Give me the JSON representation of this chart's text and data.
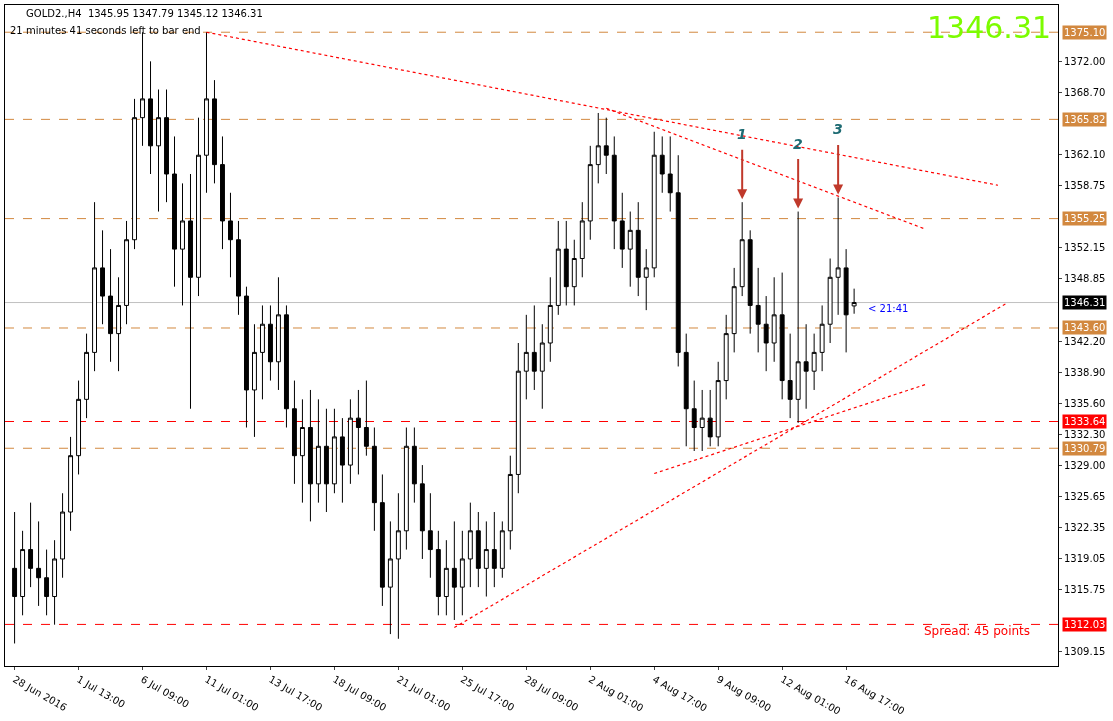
{
  "chart_data": {
    "type": "candlestick",
    "title": "GOLD2.,H4  1345.95 1347.79 1345.12 1346.31",
    "subtitle": "21 minutes 41 seconds left to bar end",
    "color": "#000000",
    "categories": [
      "28 Jun 2016",
      null,
      null,
      null,
      null,
      null,
      null,
      null,
      "1 Jul 13:00",
      null,
      null,
      null,
      null,
      null,
      null,
      null,
      "6 Jul 09:00",
      null,
      null,
      null,
      null,
      null,
      null,
      null,
      "11 Jul 01:00",
      null,
      null,
      null,
      null,
      null,
      null,
      null,
      "13 Jul 17:00",
      null,
      null,
      null,
      null,
      null,
      null,
      null,
      "18 Jul 09:00",
      null,
      null,
      null,
      null,
      null,
      null,
      null,
      "21 Jul 01:00",
      null,
      null,
      null,
      null,
      null,
      null,
      null,
      "25 Jul 17:00",
      null,
      null,
      null,
      null,
      null,
      null,
      null,
      "28 Jul 09:00",
      null,
      null,
      null,
      null,
      null,
      null,
      null,
      "2 Aug 01:00",
      null,
      null,
      null,
      null,
      null,
      null,
      null,
      "4 Aug 17:00",
      null,
      null,
      null,
      null,
      null,
      null,
      null,
      "9 Aug 09:00",
      null,
      null,
      null,
      null,
      null,
      null,
      null,
      "12 Aug 01:00",
      null,
      null,
      null,
      null,
      null,
      null,
      null,
      "16 Aug 17:00",
      null,
      null,
      null,
      null,
      null,
      null,
      null,
      null,
      null,
      null,
      null,
      null,
      null,
      null,
      null,
      null,
      null,
      null,
      null,
      null,
      null,
      null,
      null,
      null,
      null,
      null
    ],
    "ohlc": [
      [
        1318,
        1324,
        1310,
        1315
      ],
      [
        1315,
        1322,
        1313,
        1320
      ],
      [
        1320,
        1325,
        1316,
        1318
      ],
      [
        1318,
        1323,
        1314,
        1317
      ],
      [
        1317,
        1320,
        1313,
        1315
      ],
      [
        1315,
        1321,
        1312,
        1319
      ],
      [
        1319,
        1326,
        1317,
        1324
      ],
      [
        1324,
        1332,
        1322,
        1330
      ],
      [
        1330,
        1338,
        1328,
        1336
      ],
      [
        1336,
        1343,
        1334,
        1341
      ],
      [
        1341,
        1357,
        1339,
        1350
      ],
      [
        1350,
        1354,
        1344,
        1347
      ],
      [
        1347,
        1352,
        1340,
        1343
      ],
      [
        1343,
        1349,
        1339,
        1346
      ],
      [
        1346,
        1355,
        1344,
        1353
      ],
      [
        1353,
        1368,
        1352,
        1366
      ],
      [
        1366,
        1375.1,
        1363,
        1368
      ],
      [
        1368,
        1372,
        1360,
        1363
      ],
      [
        1363,
        1369,
        1356,
        1366
      ],
      [
        1366,
        1369,
        1357,
        1360
      ],
      [
        1360,
        1364,
        1348,
        1352
      ],
      [
        1352,
        1359,
        1346,
        1355
      ],
      [
        1355,
        1360,
        1335,
        1349
      ],
      [
        1349,
        1366,
        1347,
        1362
      ],
      [
        1362,
        1375.1,
        1358,
        1368
      ],
      [
        1368,
        1370,
        1359,
        1361
      ],
      [
        1361,
        1364,
        1352,
        1355
      ],
      [
        1355,
        1358,
        1349,
        1353
      ],
      [
        1353,
        1355,
        1345,
        1347
      ],
      [
        1347,
        1348,
        1333,
        1337
      ],
      [
        1337,
        1344,
        1332,
        1341
      ],
      [
        1341,
        1346,
        1336,
        1344
      ],
      [
        1344,
        1346,
        1338,
        1340
      ],
      [
        1340,
        1349,
        1337,
        1345
      ],
      [
        1345,
        1346,
        1333,
        1335
      ],
      [
        1335,
        1338,
        1327,
        1330
      ],
      [
        1330,
        1336,
        1325,
        1333
      ],
      [
        1333,
        1337,
        1323,
        1327
      ],
      [
        1327,
        1336,
        1325,
        1331
      ],
      [
        1331,
        1335,
        1324,
        1327
      ],
      [
        1327,
        1335,
        1326,
        1332
      ],
      [
        1332,
        1334,
        1325,
        1329
      ],
      [
        1329,
        1336,
        1327,
        1334
      ],
      [
        1334,
        1337,
        1328,
        1333
      ],
      [
        1333,
        1338,
        1330,
        1331
      ],
      [
        1331,
        1333,
        1322,
        1325
      ],
      [
        1325,
        1328,
        1314,
        1316
      ],
      [
        1316,
        1323,
        1311,
        1319
      ],
      [
        1319,
        1326,
        1310.5,
        1322
      ],
      [
        1322,
        1333,
        1320,
        1331
      ],
      [
        1331,
        1333,
        1325,
        1327
      ],
      [
        1327,
        1329,
        1319,
        1322
      ],
      [
        1322,
        1326,
        1317,
        1320
      ],
      [
        1320,
        1322,
        1313,
        1315
      ],
      [
        1315,
        1321,
        1313,
        1318
      ],
      [
        1318,
        1323,
        1312.5,
        1316
      ],
      [
        1316,
        1322,
        1313,
        1319
      ],
      [
        1319,
        1325,
        1316,
        1322
      ],
      [
        1322,
        1324,
        1316,
        1318
      ],
      [
        1318,
        1323,
        1315,
        1320
      ],
      [
        1320,
        1324,
        1316,
        1318
      ],
      [
        1318,
        1323,
        1317,
        1322
      ],
      [
        1322,
        1330,
        1320,
        1328
      ],
      [
        1328,
        1342,
        1326,
        1339
      ],
      [
        1339,
        1345,
        1336,
        1341
      ],
      [
        1341,
        1346,
        1337,
        1339
      ],
      [
        1339,
        1344,
        1335,
        1342
      ],
      [
        1342,
        1349,
        1340,
        1346
      ],
      [
        1346,
        1355,
        1345,
        1352
      ],
      [
        1352,
        1355,
        1346,
        1348
      ],
      [
        1348,
        1353,
        1346,
        1351
      ],
      [
        1351,
        1357,
        1349,
        1355
      ],
      [
        1355,
        1363,
        1353,
        1361
      ],
      [
        1361,
        1366.5,
        1359,
        1363
      ],
      [
        1363,
        1366,
        1360,
        1362
      ],
      [
        1362,
        1364,
        1352,
        1355
      ],
      [
        1355,
        1358,
        1350,
        1352
      ],
      [
        1352,
        1356,
        1348,
        1354
      ],
      [
        1354,
        1357,
        1347,
        1349
      ],
      [
        1349,
        1352,
        1345.5,
        1350
      ],
      [
        1350,
        1364.5,
        1349,
        1362
      ],
      [
        1362,
        1364,
        1358,
        1360
      ],
      [
        1360,
        1364,
        1356,
        1358
      ],
      [
        1358,
        1362,
        1339.5,
        1341
      ],
      [
        1341,
        1343,
        1331,
        1335
      ],
      [
        1335,
        1338,
        1330.5,
        1333
      ],
      [
        1333,
        1337,
        1330.5,
        1334
      ],
      [
        1334,
        1337,
        1331,
        1332
      ],
      [
        1332,
        1340,
        1331,
        1338
      ],
      [
        1338,
        1345,
        1336,
        1343
      ],
      [
        1343,
        1350,
        1341,
        1348
      ],
      [
        1348,
        1357,
        1347,
        1353
      ],
      [
        1353,
        1354,
        1343,
        1346
      ],
      [
        1346,
        1350,
        1341,
        1344
      ],
      [
        1344,
        1347,
        1339,
        1342
      ],
      [
        1342,
        1349,
        1340,
        1345
      ],
      [
        1345,
        1349.5,
        1336,
        1338
      ],
      [
        1338,
        1343,
        1334,
        1336
      ],
      [
        1336,
        1356,
        1333.5,
        1340
      ],
      [
        1340,
        1344,
        1335,
        1339
      ],
      [
        1339,
        1343,
        1337,
        1341
      ],
      [
        1341,
        1346,
        1339,
        1344
      ],
      [
        1344,
        1351,
        1342,
        1349
      ],
      [
        1349,
        1357.5,
        1345,
        1350
      ],
      [
        1350,
        1352,
        1341,
        1345
      ],
      [
        1345.95,
        1347.79,
        1345.12,
        1346.31
      ],
      null,
      null,
      null,
      null,
      null,
      null,
      null,
      null,
      null,
      null,
      null,
      null,
      null,
      null,
      null,
      null,
      null,
      null,
      null,
      null,
      null,
      null,
      null,
      null,
      null
    ],
    "series": [
      {
        "type": "line",
        "color": "#ff0000",
        "values": [
          null,
          null,
          null,
          null,
          null,
          null,
          null,
          null,
          null,
          null,
          null,
          null,
          null,
          null,
          null,
          null,
          null,
          null,
          null,
          null,
          null,
          null,
          null,
          null,
          1375.1,
          null,
          null,
          null,
          null,
          null,
          null,
          null,
          null,
          null,
          null,
          null,
          null,
          null,
          null,
          null,
          null,
          null,
          null,
          null,
          null,
          null,
          null,
          null,
          null,
          null,
          null,
          null,
          null,
          null,
          null,
          null,
          null,
          null,
          null,
          null,
          null,
          null,
          null,
          null,
          null,
          null,
          null,
          null,
          null,
          null,
          null,
          null,
          null,
          null,
          null,
          null,
          null,
          null,
          null,
          null,
          null,
          null,
          null,
          null,
          null,
          null,
          null,
          null,
          null,
          null,
          null,
          null,
          null,
          null,
          null,
          null,
          null,
          null,
          null,
          null,
          null,
          null,
          null,
          null,
          null,
          null,
          null,
          null,
          null,
          null,
          null,
          null,
          null,
          null,
          null,
          null,
          null,
          null,
          null,
          null,
          null,
          null,
          null,
          1358.8,
          null,
          null,
          null,
          null,
          null,
          null,
          null
        ]
      },
      {
        "type": "line",
        "color": "#ff0000",
        "values": [
          null,
          null,
          null,
          null,
          null,
          null,
          null,
          null,
          null,
          null,
          null,
          null,
          null,
          null,
          null,
          null,
          null,
          null,
          null,
          null,
          null,
          null,
          null,
          null,
          null,
          null,
          null,
          null,
          null,
          null,
          null,
          null,
          null,
          null,
          null,
          null,
          null,
          null,
          null,
          null,
          null,
          null,
          null,
          null,
          null,
          null,
          null,
          null,
          null,
          null,
          null,
          null,
          null,
          null,
          null,
          null,
          null,
          null,
          null,
          null,
          null,
          null,
          null,
          null,
          null,
          null,
          null,
          null,
          null,
          null,
          null,
          null,
          null,
          null,
          1367.0,
          null,
          null,
          null,
          null,
          null,
          null,
          null,
          null,
          null,
          null,
          null,
          null,
          null,
          null,
          null,
          null,
          null,
          null,
          null,
          null,
          null,
          null,
          null,
          null,
          null,
          null,
          null,
          null,
          null,
          null,
          null,
          null,
          null,
          null,
          null,
          null,
          null,
          null,
          null,
          1354.1,
          null,
          null,
          null,
          null,
          null,
          null,
          null,
          null,
          null,
          null,
          null,
          null,
          null,
          null,
          null,
          null
        ]
      },
      {
        "type": "line",
        "color": "#ff0000",
        "values": [
          null,
          null,
          null,
          null,
          null,
          null,
          null,
          null,
          null,
          null,
          null,
          null,
          null,
          null,
          null,
          null,
          null,
          null,
          null,
          null,
          null,
          null,
          null,
          null,
          null,
          null,
          null,
          null,
          null,
          null,
          null,
          null,
          null,
          null,
          null,
          null,
          null,
          null,
          null,
          null,
          null,
          null,
          null,
          null,
          null,
          null,
          null,
          null,
          null,
          null,
          null,
          null,
          null,
          null,
          null,
          1311.7,
          null,
          null,
          null,
          null,
          null,
          null,
          null,
          null,
          null,
          null,
          null,
          null,
          null,
          null,
          null,
          null,
          null,
          null,
          null,
          null,
          null,
          null,
          null,
          null,
          null,
          null,
          null,
          null,
          null,
          null,
          null,
          null,
          null,
          null,
          null,
          null,
          null,
          null,
          null,
          null,
          null,
          null,
          null,
          null,
          null,
          null,
          null,
          null,
          null,
          null,
          null,
          null,
          null,
          null,
          null,
          null,
          null,
          null,
          null,
          null,
          null,
          null,
          null,
          null,
          null,
          null,
          null,
          null,
          1346.2,
          null,
          null,
          null,
          null,
          null,
          null
        ]
      },
      {
        "type": "line",
        "color": "#ff0000",
        "values": [
          null,
          null,
          null,
          null,
          null,
          null,
          null,
          null,
          null,
          null,
          null,
          null,
          null,
          null,
          null,
          null,
          null,
          null,
          null,
          null,
          null,
          null,
          null,
          null,
          null,
          null,
          null,
          null,
          null,
          null,
          null,
          null,
          null,
          null,
          null,
          null,
          null,
          null,
          null,
          null,
          null,
          null,
          null,
          null,
          null,
          null,
          null,
          null,
          null,
          null,
          null,
          null,
          null,
          null,
          null,
          null,
          null,
          null,
          null,
          null,
          null,
          null,
          null,
          null,
          null,
          null,
          null,
          null,
          null,
          null,
          null,
          null,
          null,
          null,
          null,
          null,
          null,
          null,
          null,
          null,
          1328.1,
          null,
          null,
          null,
          null,
          null,
          null,
          null,
          null,
          null,
          null,
          null,
          null,
          null,
          null,
          null,
          null,
          null,
          null,
          null,
          null,
          null,
          null,
          null,
          null,
          null,
          null,
          null,
          null,
          null,
          null,
          null,
          null,
          null,
          1337.6,
          null,
          null,
          null,
          null,
          null,
          null,
          null,
          null,
          null,
          null,
          null,
          null,
          null,
          null,
          null,
          null
        ]
      }
    ],
    "line_style": "dotted",
    "ylim": [
      1307.6,
      1378.0
    ],
    "yticks": [
      {
        "value": 1372.0,
        "label": "1372.00"
      },
      {
        "value": 1368.7,
        "label": "1368.70"
      },
      {
        "value": 1362.1,
        "label": "1362.10"
      },
      {
        "value": 1358.75,
        "label": "1358.75"
      },
      {
        "value": 1352.15,
        "label": "1352.15"
      },
      {
        "value": 1348.85,
        "label": "1348.85"
      },
      {
        "value": 1342.2,
        "label": "1342.20"
      },
      {
        "value": 1338.9,
        "label": "1338.90"
      },
      {
        "value": 1335.6,
        "label": "1335.60"
      },
      {
        "value": 1332.3,
        "label": "1332.30"
      },
      {
        "value": 1329.0,
        "label": "1329.00"
      },
      {
        "value": 1325.65,
        "label": "1325.65"
      },
      {
        "value": 1322.35,
        "label": "1322.35"
      },
      {
        "value": 1319.05,
        "label": "1319.05"
      },
      {
        "value": 1315.75,
        "label": "1315.75"
      },
      {
        "value": 1309.15,
        "label": "1309.15"
      }
    ],
    "ref_lines": [
      {
        "axis": "y",
        "value": 1375.1,
        "label": "1375.10",
        "color": "#d2883f",
        "line_style": "dashed"
      },
      {
        "axis": "y",
        "value": 1365.82,
        "label": "1365.82",
        "color": "#d2883f",
        "line_style": "dashed"
      },
      {
        "axis": "y",
        "value": 1355.25,
        "label": "1355.25",
        "color": "#d2883f",
        "line_style": "dashed"
      },
      {
        "axis": "y",
        "value": 1346.31,
        "label": "1346.31",
        "color": "#c0c0c0",
        "line_style": "solid"
      },
      {
        "axis": "y",
        "value": 1343.6,
        "label": "1343.60",
        "color": "#d2883f",
        "line_style": "dashed"
      },
      {
        "axis": "y",
        "value": 1333.64,
        "label": "1333.64",
        "color": "#ff0000",
        "line_style": "dashed"
      },
      {
        "axis": "y",
        "value": 1330.79,
        "label": "1330.79",
        "color": "#d2883f",
        "line_style": "dashed"
      },
      {
        "axis": "y",
        "value": 1312.03,
        "label": "1312.03",
        "color": "#ff0000",
        "line_style": "dashed"
      }
    ],
    "annotations": [
      "1346.31",
      "Spread: 45 points",
      "< 21:41",
      {
        "text": "1",
        "y": 1357
      },
      {
        "text": "2",
        "y": 1356
      },
      {
        "text": "3",
        "y": 1357.5
      }
    ],
    "grid": false
  }
}
